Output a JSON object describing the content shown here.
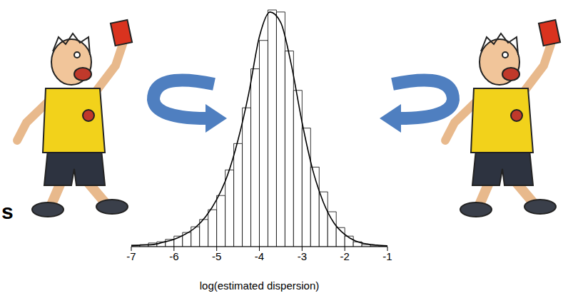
{
  "chart_data": {
    "type": "histogram",
    "x_label": "log(estimated dispersion)",
    "annotations": [
      "s"
    ],
    "bins": [
      -7,
      -6.8,
      -6.6,
      -6.4,
      -6.2,
      -6,
      -5.8,
      -5.6,
      -5.4,
      -5.2,
      -5,
      -4.8,
      -4.6,
      -4.4,
      -4.2,
      -4,
      -3.8,
      -3.6,
      -3.4,
      -3.2,
      -3,
      -2.8,
      -2.6,
      -2.4,
      -2.2,
      -2,
      -1.8,
      -1.6,
      -1.4,
      -1.2,
      -1
    ],
    "values": [
      0.004,
      0.005,
      0.009,
      0.012,
      0.018,
      0.026,
      0.035,
      0.049,
      0.067,
      0.091,
      0.126,
      0.189,
      0.254,
      0.342,
      0.438,
      0.508,
      0.583,
      0.578,
      0.482,
      0.385,
      0.292,
      0.196,
      0.135,
      0.086,
      0.047,
      0.026,
      0.012,
      0.005,
      0.002,
      0.001
    ],
    "color": "#ffffff",
    "curve": {
      "type": "line",
      "color": "#000000",
      "x": [
        -7,
        -6.75,
        -6.5,
        -6.25,
        -6,
        -5.75,
        -5.5,
        -5.25,
        -5,
        -4.75,
        -4.5,
        -4.25,
        -4,
        -3.75,
        -3.5,
        -3.25,
        -3,
        -2.75,
        -2.5,
        -2.25,
        -2,
        -1.75,
        -1.5,
        -1.25,
        -1
      ],
      "values": [
        0.002,
        0.004,
        0.005,
        0.011,
        0.018,
        0.03,
        0.047,
        0.075,
        0.116,
        0.175,
        0.263,
        0.377,
        0.517,
        0.578,
        0.552,
        0.447,
        0.306,
        0.189,
        0.109,
        0.058,
        0.03,
        0.014,
        0.007,
        0.004,
        0.002
      ]
    },
    "xlim": [
      -7,
      -1
    ],
    "xticks": [
      -7,
      -6,
      -5,
      -4,
      -3,
      -2,
      -1
    ],
    "ylim": [
      0,
      0.59
    ],
    "tick_labels": "x"
  }
}
